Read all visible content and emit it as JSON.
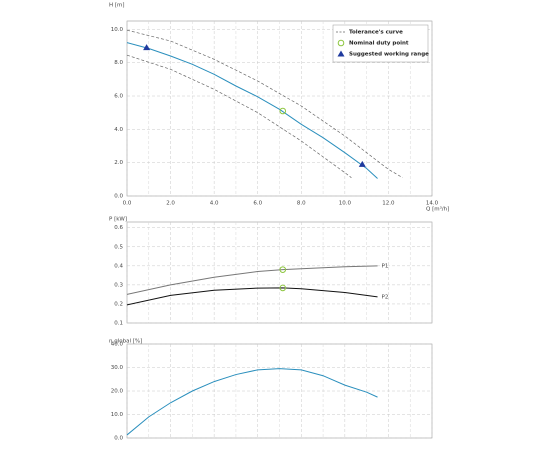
{
  "chart_data": [
    {
      "type": "line",
      "ylabel": "H [m]",
      "xlabel": "Q [m³/h]",
      "xlim": [
        0,
        14
      ],
      "ylim": [
        0,
        10.5
      ],
      "xticks": [
        {
          "value": 0,
          "label": "0.0"
        },
        {
          "value": 2,
          "label": "2.0"
        },
        {
          "value": 4,
          "label": "4.0"
        },
        {
          "value": 6,
          "label": "6.0"
        },
        {
          "value": 8,
          "label": "8.0"
        },
        {
          "value": 10,
          "label": "10.0"
        },
        {
          "value": 12,
          "label": "12.0"
        },
        {
          "value": 14,
          "label": "14.0"
        }
      ],
      "yticks": [
        {
          "value": 0,
          "label": "0.0"
        },
        {
          "value": 2,
          "label": "2.0"
        },
        {
          "value": 4,
          "label": "4.0"
        },
        {
          "value": 6,
          "label": "6.0"
        },
        {
          "value": 8,
          "label": "8.0"
        },
        {
          "value": 10,
          "label": "10.0"
        }
      ],
      "grid": true,
      "legend": "upper right",
      "series": [
        {
          "color": "#2a8fbd",
          "x": [
            0,
            1,
            2,
            3,
            4,
            5,
            6,
            7,
            8,
            9,
            10,
            11,
            11.5
          ],
          "values": [
            9.2,
            8.85,
            8.4,
            7.9,
            7.3,
            6.6,
            5.95,
            5.2,
            4.3,
            3.5,
            2.6,
            1.65,
            1.05
          ]
        },
        {
          "name": "Tolerance's curve",
          "color": "#666666",
          "dashed": true,
          "x": [
            0,
            2,
            4,
            6,
            8,
            10,
            12,
            12.65
          ],
          "values": [
            9.95,
            9.3,
            8.2,
            6.9,
            5.4,
            3.6,
            1.6,
            1.1
          ]
        },
        {
          "color": "#666666",
          "dashed": true,
          "x": [
            0,
            2,
            4,
            6,
            8,
            10,
            10.3
          ],
          "values": [
            8.45,
            7.6,
            6.4,
            5.0,
            3.3,
            1.4,
            1.1
          ]
        },
        {
          "name": "Nominal duty point",
          "color": "#8dc63f",
          "marker": "circle",
          "x": [
            7.15
          ],
          "values": [
            5.1
          ]
        },
        {
          "name": "Suggested working range",
          "color": "#1f3a9e",
          "marker": "triangle",
          "x": [
            0.9,
            10.8
          ],
          "values": [
            8.9,
            1.9
          ]
        }
      ]
    },
    {
      "type": "line",
      "ylabel": "P [kW]",
      "xlim": [
        0,
        14
      ],
      "ylim": [
        0.1,
        0.63
      ],
      "xticks": [
        0,
        2,
        4,
        6,
        8,
        10,
        12,
        14
      ],
      "yticks": [
        0.1,
        0.2,
        0.3,
        0.4,
        0.5,
        0.6
      ],
      "grid": true,
      "series": [
        {
          "name": "P1",
          "color": "#777777",
          "x": [
            0,
            2,
            4,
            6,
            7.15,
            8,
            10,
            11.5
          ],
          "values": [
            0.25,
            0.3,
            0.34,
            0.37,
            0.38,
            0.385,
            0.395,
            0.4
          ]
        },
        {
          "name": "P2",
          "color": "#111111",
          "x": [
            0,
            2,
            4,
            6,
            7.15,
            8,
            10,
            11.5
          ],
          "values": [
            0.195,
            0.245,
            0.272,
            0.283,
            0.284,
            0.28,
            0.26,
            0.237
          ]
        },
        {
          "color": "#8dc63f",
          "marker": "circle",
          "x": [
            7.15,
            7.15
          ],
          "values": [
            0.38,
            0.284
          ]
        }
      ]
    },
    {
      "type": "line",
      "ylabel": "η global [%]",
      "xlim": [
        0,
        14
      ],
      "ylim": [
        0,
        40
      ],
      "xticks": [
        0,
        2,
        4,
        6,
        8,
        10,
        12,
        14
      ],
      "yticks": [
        {
          "value": 0,
          "label": "0.0"
        },
        {
          "value": 10,
          "label": "10.0"
        },
        {
          "value": 20,
          "label": "20.0"
        },
        {
          "value": 30,
          "label": "30.0"
        },
        {
          "value": 40,
          "label": "40.0"
        }
      ],
      "grid": true,
      "series": [
        {
          "color": "#2a8fbd",
          "x": [
            0,
            1,
            2,
            3,
            4,
            5,
            6,
            7,
            8,
            9,
            10,
            11,
            11.5
          ],
          "values": [
            1.3,
            9,
            15,
            20,
            24,
            27,
            29,
            29.5,
            29,
            26.5,
            22.5,
            19.5,
            17.4
          ]
        }
      ]
    }
  ]
}
